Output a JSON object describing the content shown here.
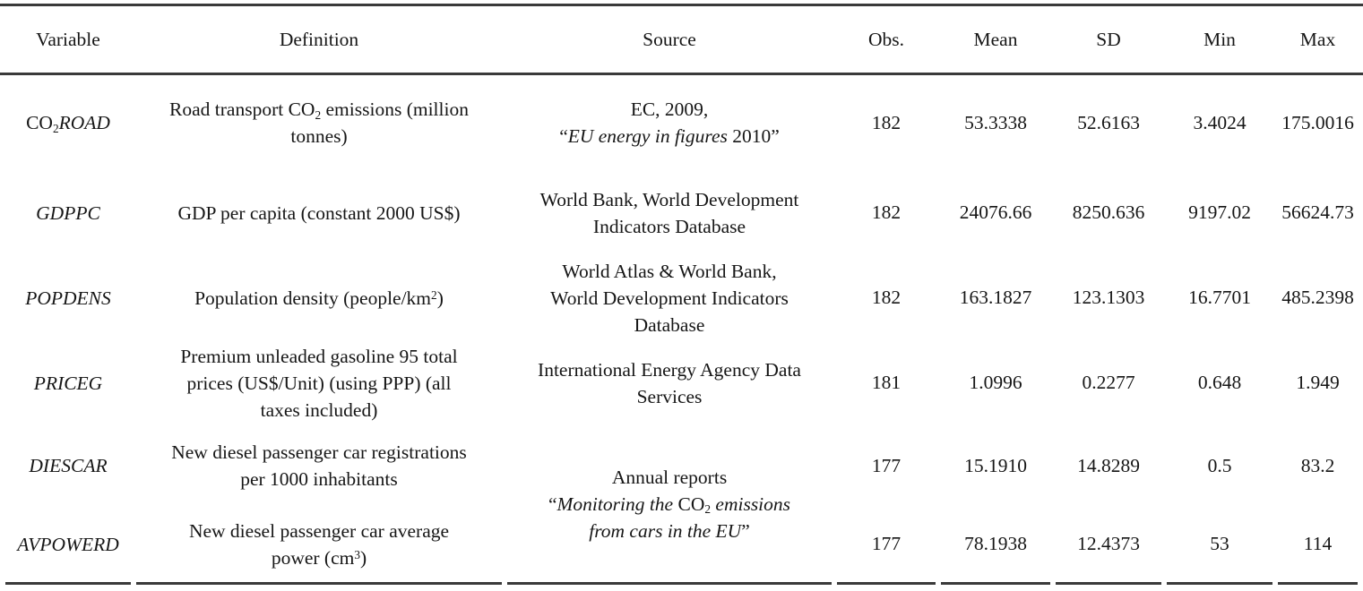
{
  "colors": {
    "rule": "#3a3a3a",
    "text": "#161616",
    "background": "#ffffff"
  },
  "table": {
    "header": [
      "Variable",
      "Definition",
      "Source",
      "Obs.",
      "Mean",
      "SD",
      "Min",
      "Max"
    ],
    "rows": [
      {
        "name": "CO2ROAD",
        "variable": [
          [
            {
              "t": "CO"
            },
            {
              "t": "2",
              "s": "sub"
            },
            {
              "t": "ROAD",
              "s": "i"
            }
          ]
        ],
        "definition": [
          [
            {
              "t": "Road transport CO"
            },
            {
              "t": "2",
              "s": "sub"
            },
            {
              "t": " emissions (million"
            }
          ],
          [
            {
              "t": "tonnes)"
            }
          ]
        ],
        "source": [
          [
            {
              "t": "EC, 2009,"
            }
          ],
          [
            {
              "t": "“"
            },
            {
              "t": "EU energy in figures",
              "s": "i"
            },
            {
              "t": " 2010”"
            }
          ]
        ],
        "obs": "182",
        "mean": "53.3338",
        "sd": "52.6163",
        "min": "3.4024",
        "max": "175.0016"
      },
      {
        "name": "GDPPC",
        "variable": [
          [
            {
              "t": "GDPPC",
              "s": "i"
            }
          ]
        ],
        "definition": [
          [
            {
              "t": "GDP per capita (constant 2000 US$)"
            }
          ]
        ],
        "source": [
          [
            {
              "t": "World Bank, World Development"
            }
          ],
          [
            {
              "t": "Indicators Database"
            }
          ]
        ],
        "obs": "182",
        "mean": "24076.66",
        "sd": "8250.636",
        "min": "9197.02",
        "max": "56624.73"
      },
      {
        "name": "POPDENS",
        "variable": [
          [
            {
              "t": "POPDENS",
              "s": "i"
            }
          ]
        ],
        "definition": [
          [
            {
              "t": "Population density (people/km"
            },
            {
              "t": "2",
              "s": "sup"
            },
            {
              "t": ")"
            }
          ]
        ],
        "source": [
          [
            {
              "t": "World Atlas & World Bank,"
            }
          ],
          [
            {
              "t": "World Development Indicators"
            }
          ],
          [
            {
              "t": "Database"
            }
          ]
        ],
        "obs": "182",
        "mean": "163.1827",
        "sd": "123.1303",
        "min": "16.7701",
        "max": "485.2398"
      },
      {
        "name": "PRICEG",
        "variable": [
          [
            {
              "t": "PRICEG",
              "s": "i"
            }
          ]
        ],
        "definition": [
          [
            {
              "t": "Premium unleaded gasoline 95 total"
            }
          ],
          [
            {
              "t": "prices (US$/Unit) (using PPP) (all"
            }
          ],
          [
            {
              "t": "taxes included)"
            }
          ]
        ],
        "source": [
          [
            {
              "t": "International Energy Agency Data"
            }
          ],
          [
            {
              "t": "Services"
            }
          ]
        ],
        "obs": "181",
        "mean": "1.0996",
        "sd": "0.2277",
        "min": "0.648",
        "max": "1.949"
      },
      {
        "name": "DIESCAR",
        "variable": [
          [
            {
              "t": "DIESCAR",
              "s": "i"
            }
          ]
        ],
        "definition": [
          [
            {
              "t": "New diesel passenger car registrations"
            }
          ],
          [
            {
              "t": "per 1000 inhabitants"
            }
          ]
        ],
        "source": [
          [
            {
              "t": "Annual reports"
            }
          ],
          [
            {
              "t": "“"
            },
            {
              "t": "Monitoring the ",
              "s": "i"
            },
            {
              "t": "CO"
            },
            {
              "t": "2",
              "s": "sub"
            },
            {
              "t": " emissions",
              "s": "i"
            }
          ],
          [
            {
              "t": "from cars in the EU",
              "s": "i"
            },
            {
              "t": "”"
            }
          ]
        ],
        "obs": "177",
        "mean": "15.1910",
        "sd": "14.8289",
        "min": "0.5",
        "max": "83.2"
      },
      {
        "name": "AVPOWERD",
        "variable": [
          [
            {
              "t": "AVPOWERD",
              "s": "i"
            }
          ]
        ],
        "definition": [
          [
            {
              "t": "New diesel passenger car average"
            }
          ],
          [
            {
              "t": "power (cm"
            },
            {
              "t": "3",
              "s": "sup"
            },
            {
              "t": ")"
            }
          ]
        ],
        "source": null,
        "obs": "177",
        "mean": "78.1938",
        "sd": "12.4373",
        "min": "53",
        "max": "114"
      }
    ]
  }
}
